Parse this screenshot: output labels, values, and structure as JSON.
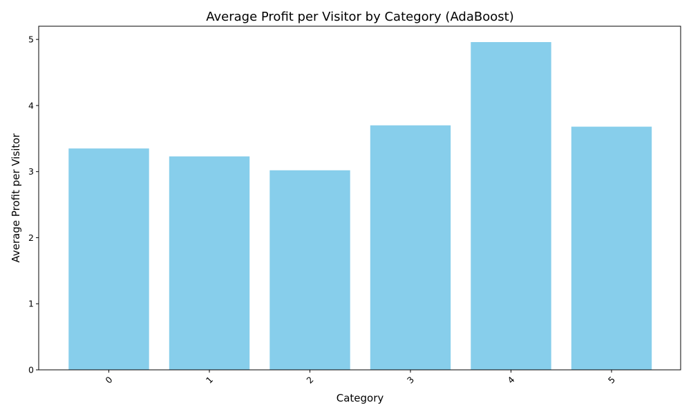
{
  "chart_data": {
    "type": "bar",
    "title": "Average Profit per Visitor by Category (AdaBoost)",
    "xlabel": "Category",
    "ylabel": "Average Profit per Visitor",
    "categories": [
      "0",
      "1",
      "2",
      "3",
      "4",
      "5"
    ],
    "values": [
      3.35,
      3.23,
      3.02,
      3.7,
      4.96,
      3.68
    ],
    "ylim": [
      0,
      5.2
    ],
    "yticks": [
      "0",
      "1",
      "2",
      "3",
      "4",
      "5"
    ],
    "xtick_rotation": 45,
    "bar_color": "#87CEEB",
    "grid": false,
    "legend": "none"
  }
}
